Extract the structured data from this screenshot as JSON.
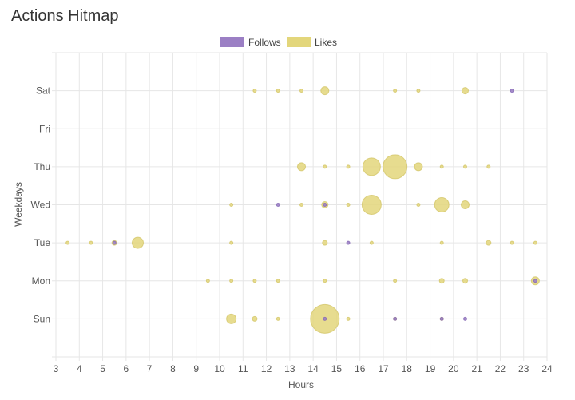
{
  "card": {
    "title": "Actions Hitmap"
  },
  "chart_data": {
    "type": "bubble",
    "title": "Actions Hitmap",
    "xlabel": "Hours",
    "ylabel": "Weekdays",
    "xlim": [
      3,
      24
    ],
    "x_ticks": [
      3,
      4,
      5,
      6,
      7,
      8,
      9,
      10,
      11,
      12,
      13,
      14,
      15,
      16,
      17,
      18,
      19,
      20,
      21,
      22,
      23,
      24
    ],
    "y_categories": [
      "Sun",
      "Mon",
      "Tue",
      "Wed",
      "Thu",
      "Fri",
      "Sat"
    ],
    "legend": {
      "position": "top-center"
    },
    "series": [
      {
        "name": "Follows",
        "color": "#9b7fc4",
        "border_color": "#7e5fb0",
        "points": [
          {
            "x": 14.5,
            "day": "Sun",
            "r": 2
          },
          {
            "x": 17.5,
            "day": "Sun",
            "r": 2
          },
          {
            "x": 19.5,
            "day": "Sun",
            "r": 2
          },
          {
            "x": 20.5,
            "day": "Sun",
            "r": 2
          },
          {
            "x": 23.5,
            "day": "Mon",
            "r": 2
          },
          {
            "x": 5.5,
            "day": "Tue",
            "r": 2
          },
          {
            "x": 15.5,
            "day": "Tue",
            "r": 2
          },
          {
            "x": 12.5,
            "day": "Wed",
            "r": 2
          },
          {
            "x": 14.5,
            "day": "Wed",
            "r": 2
          },
          {
            "x": 22.5,
            "day": "Sat",
            "r": 2
          }
        ]
      },
      {
        "name": "Likes",
        "color": "#e3d67b",
        "border_color": "#d0c260",
        "points": [
          {
            "x": 10.5,
            "day": "Sun",
            "r": 6
          },
          {
            "x": 11.5,
            "day": "Sun",
            "r": 3
          },
          {
            "x": 12.5,
            "day": "Sun",
            "r": 2
          },
          {
            "x": 14.5,
            "day": "Sun",
            "r": 18
          },
          {
            "x": 15.5,
            "day": "Sun",
            "r": 2
          },
          {
            "x": 17.5,
            "day": "Sun",
            "r": 2
          },
          {
            "x": 19.5,
            "day": "Sun",
            "r": 2
          },
          {
            "x": 9.5,
            "day": "Mon",
            "r": 2
          },
          {
            "x": 10.5,
            "day": "Mon",
            "r": 2
          },
          {
            "x": 11.5,
            "day": "Mon",
            "r": 2
          },
          {
            "x": 12.5,
            "day": "Mon",
            "r": 2
          },
          {
            "x": 14.5,
            "day": "Mon",
            "r": 2
          },
          {
            "x": 17.5,
            "day": "Mon",
            "r": 2
          },
          {
            "x": 19.5,
            "day": "Mon",
            "r": 3
          },
          {
            "x": 20.5,
            "day": "Mon",
            "r": 3
          },
          {
            "x": 23.5,
            "day": "Mon",
            "r": 5
          },
          {
            "x": 3.5,
            "day": "Tue",
            "r": 2
          },
          {
            "x": 4.5,
            "day": "Tue",
            "r": 2
          },
          {
            "x": 5.5,
            "day": "Tue",
            "r": 3
          },
          {
            "x": 6.5,
            "day": "Tue",
            "r": 7
          },
          {
            "x": 10.5,
            "day": "Tue",
            "r": 2
          },
          {
            "x": 14.5,
            "day": "Tue",
            "r": 3
          },
          {
            "x": 16.5,
            "day": "Tue",
            "r": 2
          },
          {
            "x": 19.5,
            "day": "Tue",
            "r": 2
          },
          {
            "x": 21.5,
            "day": "Tue",
            "r": 3
          },
          {
            "x": 22.5,
            "day": "Tue",
            "r": 2
          },
          {
            "x": 23.5,
            "day": "Tue",
            "r": 2
          },
          {
            "x": 10.5,
            "day": "Wed",
            "r": 2
          },
          {
            "x": 13.5,
            "day": "Wed",
            "r": 2
          },
          {
            "x": 14.5,
            "day": "Wed",
            "r": 4
          },
          {
            "x": 15.5,
            "day": "Wed",
            "r": 2
          },
          {
            "x": 16.5,
            "day": "Wed",
            "r": 12
          },
          {
            "x": 18.5,
            "day": "Wed",
            "r": 2
          },
          {
            "x": 19.5,
            "day": "Wed",
            "r": 9
          },
          {
            "x": 20.5,
            "day": "Wed",
            "r": 5
          },
          {
            "x": 13.5,
            "day": "Thu",
            "r": 5
          },
          {
            "x": 14.5,
            "day": "Thu",
            "r": 2
          },
          {
            "x": 15.5,
            "day": "Thu",
            "r": 2
          },
          {
            "x": 16.5,
            "day": "Thu",
            "r": 11
          },
          {
            "x": 17.5,
            "day": "Thu",
            "r": 15
          },
          {
            "x": 18.5,
            "day": "Thu",
            "r": 5
          },
          {
            "x": 19.5,
            "day": "Thu",
            "r": 2
          },
          {
            "x": 20.5,
            "day": "Thu",
            "r": 2
          },
          {
            "x": 21.5,
            "day": "Thu",
            "r": 2
          },
          {
            "x": 11.5,
            "day": "Sat",
            "r": 2
          },
          {
            "x": 12.5,
            "day": "Sat",
            "r": 2
          },
          {
            "x": 13.5,
            "day": "Sat",
            "r": 2
          },
          {
            "x": 14.5,
            "day": "Sat",
            "r": 5
          },
          {
            "x": 17.5,
            "day": "Sat",
            "r": 2
          },
          {
            "x": 18.5,
            "day": "Sat",
            "r": 2
          },
          {
            "x": 20.5,
            "day": "Sat",
            "r": 4
          }
        ]
      }
    ]
  }
}
